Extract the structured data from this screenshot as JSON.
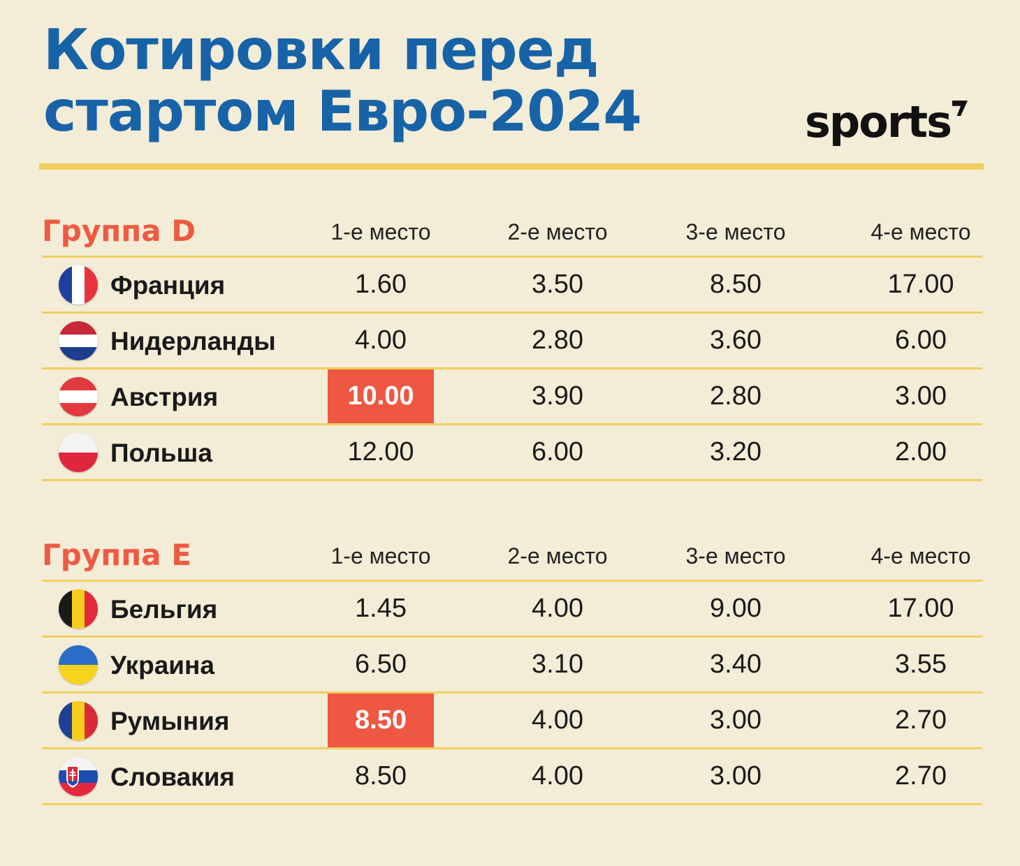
{
  "title": {
    "line1": "Котировки перед",
    "line2": "стартом Евро-2024"
  },
  "logo": "sports",
  "columns": [
    "1-е место",
    "2-е место",
    "3-е место",
    "4-е место"
  ],
  "colors": {
    "title": "#1763a8",
    "accent": "#ef5a42",
    "highlight": "#ee5741",
    "rule": "#f1cf5d",
    "background": "#f3ecd6"
  },
  "groups": [
    {
      "title": "Группа D",
      "rows": [
        {
          "team": "Франция",
          "flag": "france-flag-icon",
          "odds": [
            "1.60",
            "3.50",
            "8.50",
            "17.00"
          ],
          "highlight": null
        },
        {
          "team": "Нидерланды",
          "flag": "netherlands-flag-icon",
          "odds": [
            "4.00",
            "2.80",
            "3.60",
            "6.00"
          ],
          "highlight": null
        },
        {
          "team": "Австрия",
          "flag": "austria-flag-icon",
          "odds": [
            "10.00",
            "3.90",
            "2.80",
            "3.00"
          ],
          "highlight": 0
        },
        {
          "team": "Польша",
          "flag": "poland-flag-icon",
          "odds": [
            "12.00",
            "6.00",
            "3.20",
            "2.00"
          ],
          "highlight": null
        }
      ]
    },
    {
      "title": "Группа E",
      "rows": [
        {
          "team": "Бельгия",
          "flag": "belgium-flag-icon",
          "odds": [
            "1.45",
            "4.00",
            "9.00",
            "17.00"
          ],
          "highlight": null
        },
        {
          "team": "Украина",
          "flag": "ukraine-flag-icon",
          "odds": [
            "6.50",
            "3.10",
            "3.40",
            "3.55"
          ],
          "highlight": null
        },
        {
          "team": "Румыния",
          "flag": "romania-flag-icon",
          "odds": [
            "8.50",
            "4.00",
            "3.00",
            "2.70"
          ],
          "highlight": 0
        },
        {
          "team": "Словакия",
          "flag": "slovakia-flag-icon",
          "odds": [
            "8.50",
            "4.00",
            "3.00",
            "2.70"
          ],
          "highlight": null
        }
      ]
    }
  ]
}
